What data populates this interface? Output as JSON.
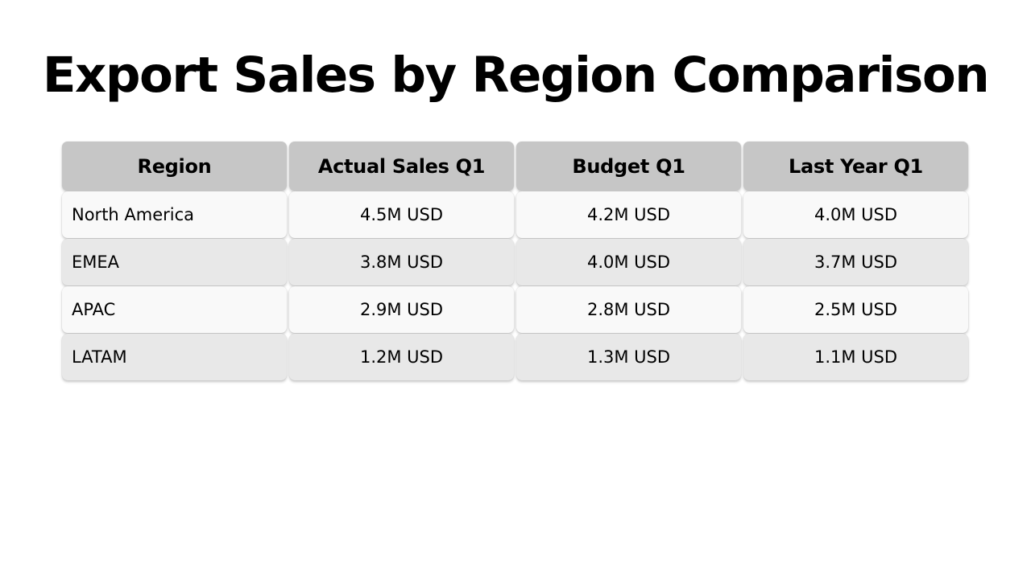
{
  "title": "Export Sales by Region Comparison",
  "table": {
    "headers": [
      "Region",
      "Actual Sales Q1",
      "Budget Q1",
      "Last Year Q1"
    ],
    "rows": [
      [
        "North America",
        "4.5M USD",
        "4.2M USD",
        "4.0M USD"
      ],
      [
        "EMEA",
        "3.8M USD",
        "4.0M USD",
        "3.7M USD"
      ],
      [
        "APAC",
        "2.9M USD",
        "2.8M USD",
        "2.5M USD"
      ],
      [
        "LATAM",
        "1.2M USD",
        "1.3M USD",
        "1.1M USD"
      ]
    ]
  },
  "colors": {
    "header_bg": "#c6c6c6",
    "row_light": "#f9f9f9",
    "row_dark": "#e8e8e8",
    "text": "#000000"
  }
}
